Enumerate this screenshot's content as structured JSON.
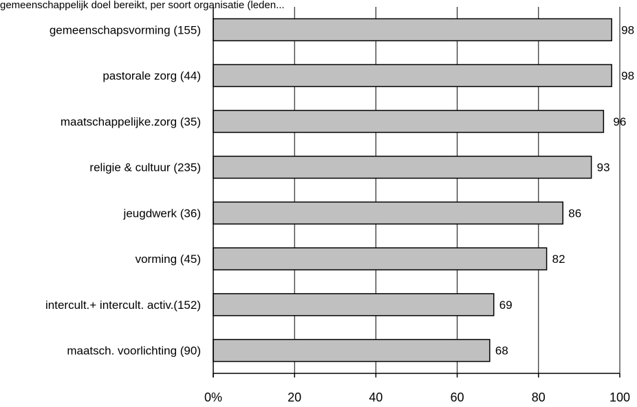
{
  "chart_data": {
    "type": "bar",
    "orientation": "horizontal",
    "title": "gemeenschappelijk doel bereikt, per soort organisatie (leden...",
    "categories": [
      "gemeenschapsvorming (155)",
      "pastorale zorg (44)",
      "maatschappelijke.zorg (35)",
      "religie & cultuur (235)",
      "jeugdwerk (36)",
      "vorming (45)",
      "intercult.+ intercult. activ.(152)",
      "maatsch. voorlichting (90)"
    ],
    "values": [
      98,
      98,
      96,
      93,
      86,
      82,
      69,
      68
    ],
    "data_labels": [
      "98",
      "98",
      "96",
      "93",
      "86",
      "82",
      "69",
      "68"
    ],
    "xlim": [
      0,
      100
    ],
    "xticks": [
      0,
      20,
      40,
      60,
      80,
      100
    ],
    "xtick_labels": [
      "0%",
      "20",
      "40",
      "60",
      "80",
      "100"
    ],
    "grid": "vertical",
    "bar_color": "#c0c0c0",
    "edge_color": "#000000"
  }
}
